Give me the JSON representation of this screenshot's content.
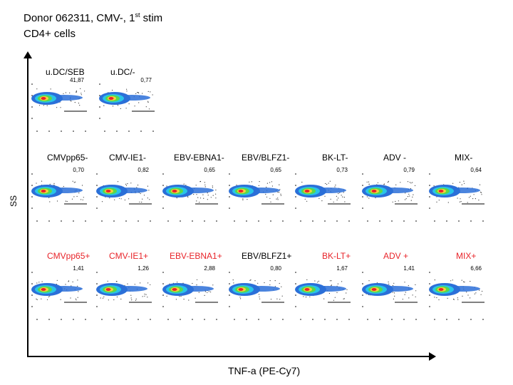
{
  "title": {
    "line1_pre": "Donor 062311, CMV-, 1",
    "line1_sup": "st",
    "line1_post": " stim",
    "line2": "CD4+ cells"
  },
  "axes": {
    "y_label": "SS",
    "x_label": "TNF-a (PE-Cy7)"
  },
  "colors": {
    "label_red": "#e8242a",
    "text": "#000000"
  },
  "rows": [
    {
      "name": "controls",
      "plots": [
        {
          "label": "u.DC/SEB",
          "pct": "41,87",
          "red": false
        },
        {
          "label": "u.DC/-",
          "pct": "0,77",
          "red": false
        }
      ]
    },
    {
      "name": "minus",
      "plots": [
        {
          "label": "CMVpp65-",
          "pct": "0,70",
          "red": false
        },
        {
          "label": "CMV-IE1-",
          "pct": "0,82",
          "red": false
        },
        {
          "label": "EBV-EBNA1-",
          "pct": "0,65",
          "red": false
        },
        {
          "label": "EBV/BLFZ1-",
          "pct": "0,65",
          "red": false
        },
        {
          "label": "BK-LT-",
          "pct": "0,73",
          "red": false
        },
        {
          "label": "ADV -",
          "pct": "0,79",
          "red": false
        },
        {
          "label": "MIX-",
          "pct": "0,64",
          "red": false
        }
      ]
    },
    {
      "name": "plus",
      "plots": [
        {
          "label": "CMVpp65+",
          "pct": "1,41",
          "red": true
        },
        {
          "label": "CMV-IE1+",
          "pct": "1,26",
          "red": true
        },
        {
          "label": "EBV-EBNA1+",
          "pct": "2,88",
          "red": true
        },
        {
          "label": "EBV/BLFZ1+",
          "pct": "0,80",
          "red": false
        },
        {
          "label": "BK-LT+",
          "pct": "1,67",
          "red": true
        },
        {
          "label": "ADV +",
          "pct": "1,41",
          "red": true
        },
        {
          "label": "MIX+",
          "pct": "6,66",
          "red": true
        }
      ]
    }
  ]
}
